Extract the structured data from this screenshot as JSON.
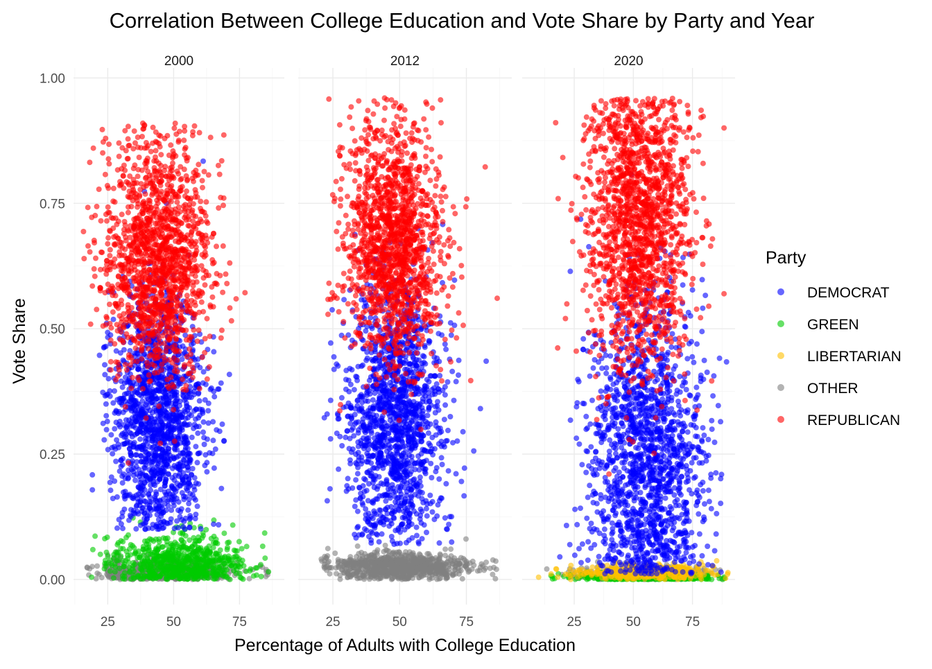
{
  "chart_data": {
    "type": "scatter",
    "title": "Correlation Between College Education and Vote Share by Party and Year",
    "xlabel": "Percentage of Adults with College Education",
    "ylabel": "Vote Share",
    "ylim": [
      -0.05,
      1.02
    ],
    "y_ticks": [
      0.0,
      0.25,
      0.5,
      0.75,
      1.0
    ],
    "y_tick_labels": [
      "0.00",
      "0.25",
      "0.50",
      "0.75",
      "1.00"
    ],
    "x_ticks": [
      25,
      50,
      75
    ],
    "x_tick_labels": [
      "25",
      "50",
      "75"
    ],
    "grid": true,
    "legend": {
      "title": "Party",
      "placement": "right",
      "entries": [
        "DEMOCRAT",
        "GREEN",
        "LIBERTARIAN",
        "OTHER",
        "REPUBLICAN"
      ]
    },
    "colors": {
      "DEMOCRAT": "#0000ff",
      "GREEN": "#00cc00",
      "LIBERTARIAN": "#ffbf00",
      "OTHER": "#808080",
      "REPUBLICAN": "#ff0000"
    },
    "facets": [
      {
        "label": "2000",
        "xlim": [
          12,
          92
        ],
        "series": [
          {
            "name": "DEMOCRAT",
            "clusters": [
              {
                "x": [
                  15,
                  85
                ],
                "y": [
                  0.1,
                  0.86
                ],
                "cx": 44,
                "cy": 0.32,
                "sx": 9,
                "sy": 0.12,
                "n": 1500
              }
            ]
          },
          {
            "name": "REPUBLICAN",
            "clusters": [
              {
                "x": [
                  15,
                  88
                ],
                "y": [
                  0.12,
                  0.91
                ],
                "cx": 44,
                "cy": 0.64,
                "sx": 10,
                "sy": 0.12,
                "n": 1500
              }
            ]
          },
          {
            "name": "GREEN",
            "clusters": [
              {
                "x": [
                  17,
                  88
                ],
                "y": [
                  0.0,
                  0.17
                ],
                "cx": 52,
                "cy": 0.035,
                "sx": 13,
                "sy": 0.028,
                "n": 700
              }
            ]
          },
          {
            "name": "OTHER",
            "clusters": [
              {
                "x": [
                  17,
                  88
                ],
                "y": [
                  0.0,
                  0.1
                ],
                "cx": 45,
                "cy": 0.015,
                "sx": 13,
                "sy": 0.012,
                "n": 600
              }
            ]
          }
        ]
      },
      {
        "label": "2012",
        "xlim": [
          12,
          92
        ],
        "series": [
          {
            "name": "DEMOCRAT",
            "clusters": [
              {
                "x": [
                  18,
                  87
                ],
                "y": [
                  0.07,
                  0.89
                ],
                "cx": 48,
                "cy": 0.33,
                "sx": 9,
                "sy": 0.13,
                "n": 1500
              }
            ]
          },
          {
            "name": "REPUBLICAN",
            "clusters": [
              {
                "x": [
                  18,
                  87
                ],
                "y": [
                  0.1,
                  0.96
                ],
                "cx": 48,
                "cy": 0.67,
                "sx": 9,
                "sy": 0.12,
                "n": 1500
              }
            ]
          },
          {
            "name": "OTHER",
            "clusters": [
              {
                "x": [
                  20,
                  87
                ],
                "y": [
                  0.0,
                  0.12
                ],
                "cx": 50,
                "cy": 0.025,
                "sx": 13,
                "sy": 0.013,
                "n": 900
              }
            ]
          }
        ]
      },
      {
        "label": "2020",
        "xlim": [
          3,
          93
        ],
        "series": [
          {
            "name": "DEMOCRAT",
            "clusters": [
              {
                "x": [
                  8,
                  91
                ],
                "y": [
                  0.01,
                  0.92
                ],
                "cx": 56,
                "cy": 0.24,
                "sx": 12,
                "sy": 0.15,
                "n": 1600
              }
            ]
          },
          {
            "name": "REPUBLICAN",
            "clusters": [
              {
                "x": [
                  8,
                  91
                ],
                "y": [
                  0.0,
                  0.96
                ],
                "cx": 52,
                "cy": 0.72,
                "sx": 11,
                "sy": 0.15,
                "n": 1600
              }
            ]
          },
          {
            "name": "LIBERTARIAN",
            "clusters": [
              {
                "x": [
                  5,
                  90
                ],
                "y": [
                  0.0,
                  0.04
                ],
                "cx": 55,
                "cy": 0.014,
                "sx": 15,
                "sy": 0.008,
                "n": 400
              }
            ]
          },
          {
            "name": "GREEN",
            "clusters": [
              {
                "x": [
                  5,
                  90
                ],
                "y": [
                  0.0,
                  0.02
                ],
                "cx": 55,
                "cy": 0.004,
                "sx": 15,
                "sy": 0.004,
                "n": 350
              }
            ]
          },
          {
            "name": "OTHER",
            "clusters": [
              {
                "x": [
                  5,
                  90
                ],
                "y": [
                  0.0,
                  0.05
                ],
                "cx": 55,
                "cy": 0.01,
                "sx": 15,
                "sy": 0.008,
                "n": 300
              }
            ]
          }
        ]
      }
    ]
  }
}
